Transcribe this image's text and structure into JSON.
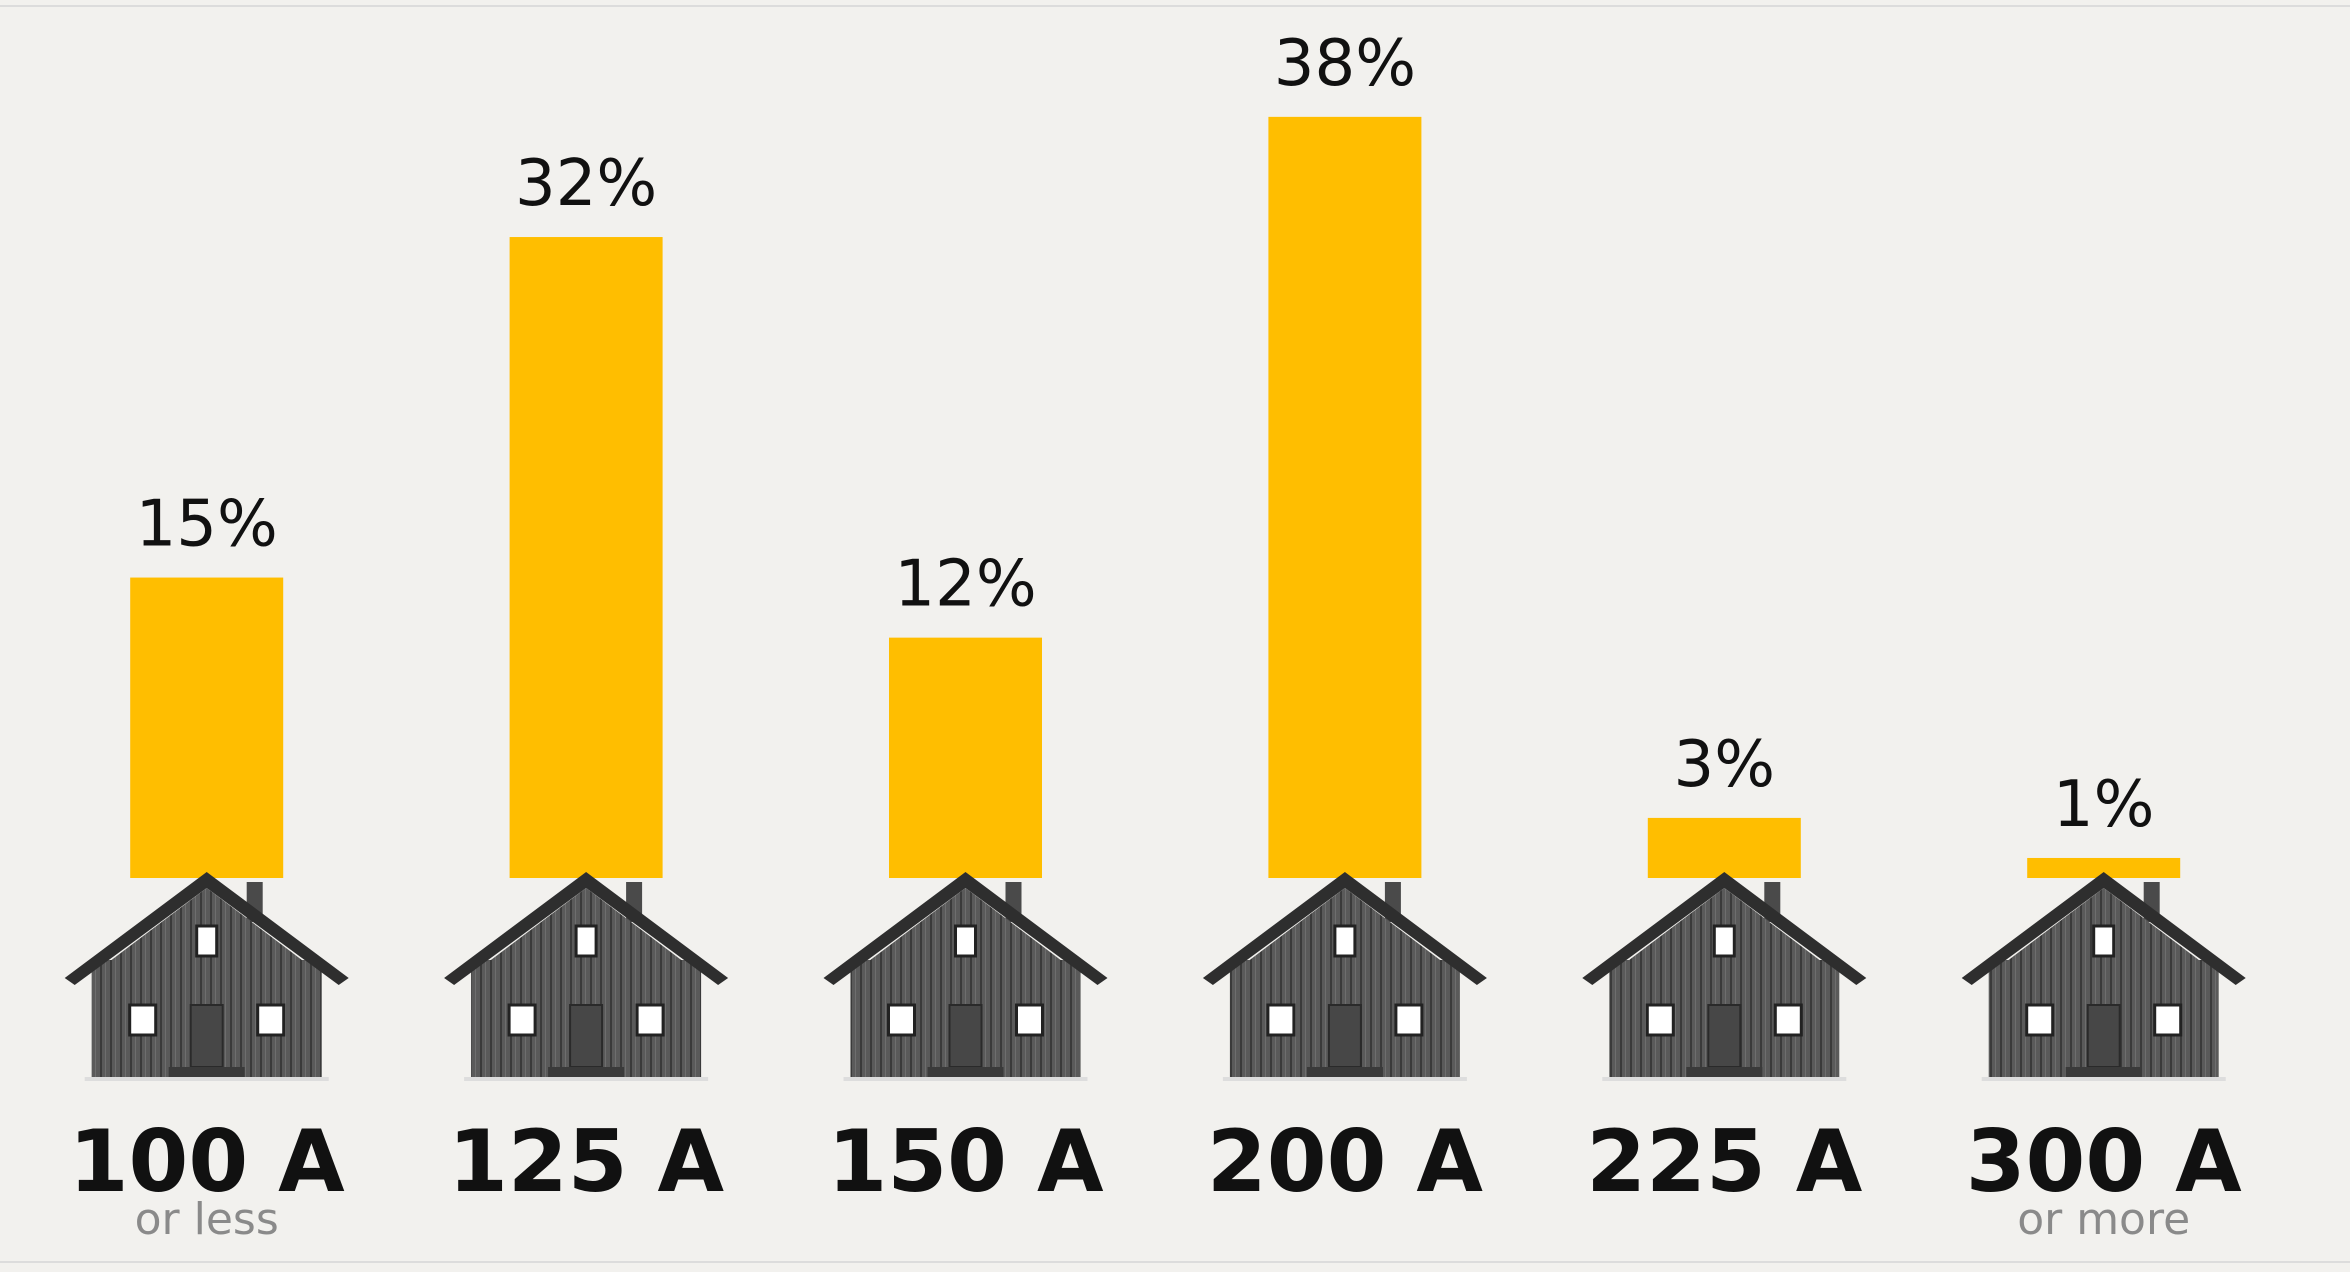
{
  "chart_data": {
    "type": "bar",
    "categories": [
      "100 A",
      "125 A",
      "150 A",
      "200 A",
      "225 A",
      "300 A"
    ],
    "sublabels": [
      "or less",
      null,
      null,
      null,
      null,
      "or more"
    ],
    "values": [
      15,
      32,
      12,
      38,
      3,
      1
    ],
    "value_labels": [
      "15%",
      "32%",
      "12%",
      "38%",
      "3%",
      "1%"
    ],
    "color": "#ffbe00"
  }
}
